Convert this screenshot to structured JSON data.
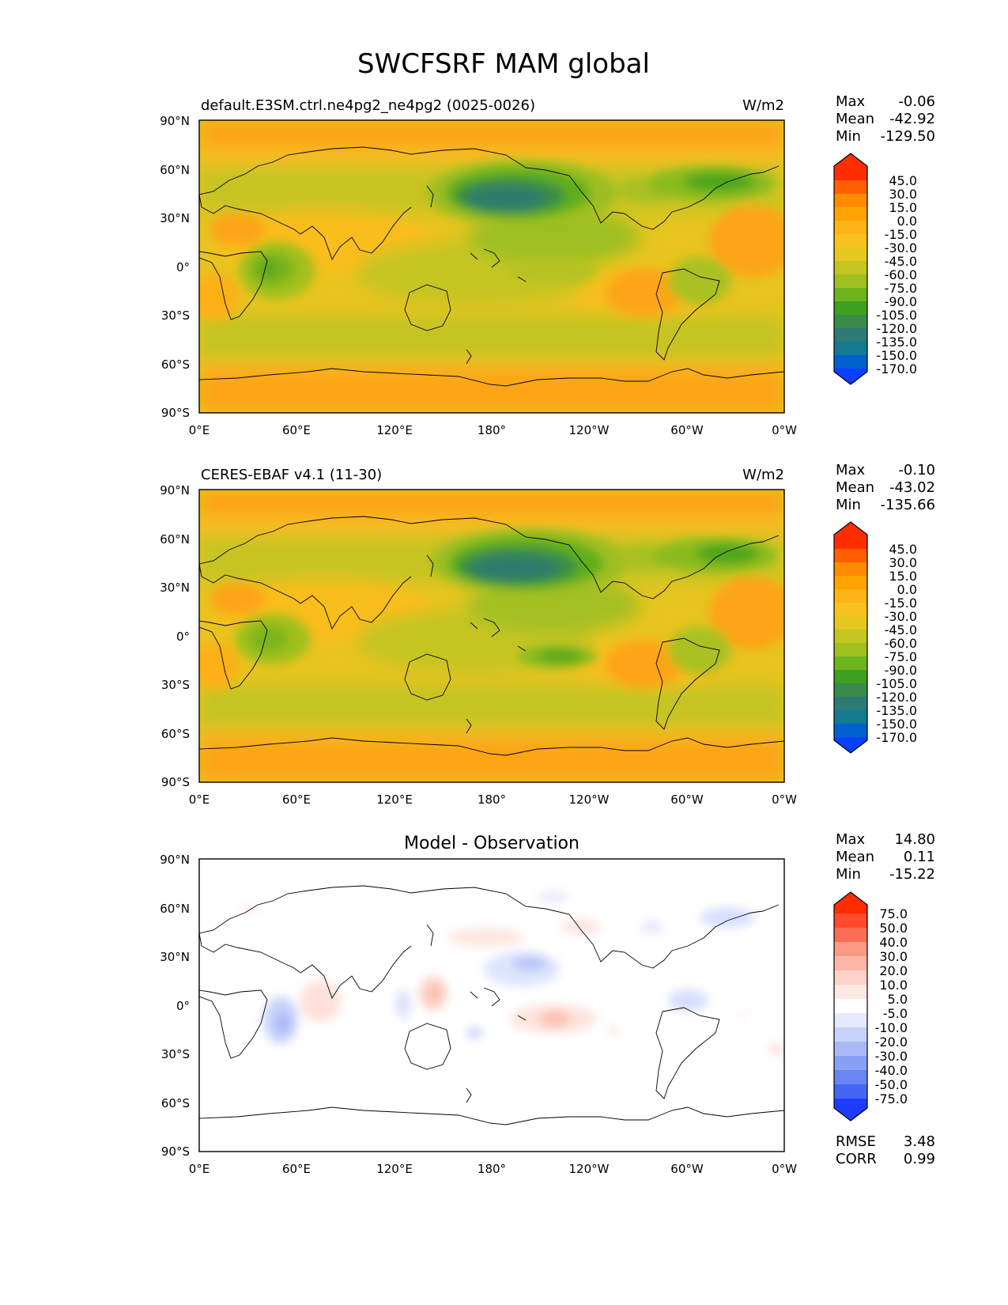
{
  "figure": {
    "title": "SWCFSRF MAM global",
    "x_ticks": [
      "0°E",
      "60°E",
      "120°E",
      "180°",
      "120°W",
      "60°W",
      "0°W"
    ],
    "y_ticks": [
      "90°N",
      "60°N",
      "30°N",
      "0°",
      "30°S",
      "60°S",
      "90°S"
    ]
  },
  "panels": [
    {
      "id": "model",
      "left_title": "default.E3SM.ctrl.ne4pg2_ne4pg2 (0025-0026)",
      "center_title": "",
      "units": "W/m2",
      "stats": [
        {
          "label": "Max",
          "value": "-0.06"
        },
        {
          "label": "Mean",
          "value": "-42.92"
        },
        {
          "label": "Min",
          "value": "-129.50"
        }
      ],
      "extra_stats": [],
      "colorbar": {
        "labels": [
          "45.0",
          "30.0",
          "15.0",
          "0.0",
          "-15.0",
          "-30.0",
          "-45.0",
          "-60.0",
          "-75.0",
          "-90.0",
          "-105.0",
          "-120.0",
          "-135.0",
          "-150.0",
          "-170.0"
        ],
        "colors": [
          "#ff2d00",
          "#ff5f00",
          "#ff8b00",
          "#ffa400",
          "#fdb416",
          "#f7c21f",
          "#e6c81e",
          "#c4c520",
          "#9fc01e",
          "#6eb41c",
          "#3ea020",
          "#3a8a4c",
          "#2d7a76",
          "#137a90",
          "#0060d0",
          "#0a40ff"
        ]
      }
    },
    {
      "id": "obs",
      "left_title": "CERES-EBAF v4.1 (11-30)",
      "center_title": "",
      "units": "W/m2",
      "stats": [
        {
          "label": "Max",
          "value": "-0.10"
        },
        {
          "label": "Mean",
          "value": "-43.02"
        },
        {
          "label": "Min",
          "value": "-135.66"
        }
      ],
      "extra_stats": [],
      "colorbar": {
        "labels": [
          "45.0",
          "30.0",
          "15.0",
          "0.0",
          "-15.0",
          "-30.0",
          "-45.0",
          "-60.0",
          "-75.0",
          "-90.0",
          "-105.0",
          "-120.0",
          "-135.0",
          "-150.0",
          "-170.0"
        ],
        "colors": [
          "#ff2d00",
          "#ff5f00",
          "#ff8b00",
          "#ffa400",
          "#fdb416",
          "#f7c21f",
          "#e6c81e",
          "#c4c520",
          "#9fc01e",
          "#6eb41c",
          "#3ea020",
          "#3a8a4c",
          "#2d7a76",
          "#137a90",
          "#0060d0",
          "#0a40ff"
        ]
      }
    },
    {
      "id": "diff",
      "left_title": "",
      "center_title": "Model - Observation",
      "units": "",
      "stats": [
        {
          "label": "Max",
          "value": "14.80"
        },
        {
          "label": "Mean",
          "value": "0.11"
        },
        {
          "label": "Min",
          "value": "-15.22"
        }
      ],
      "extra_stats": [
        {
          "label": "RMSE",
          "value": "3.48"
        },
        {
          "label": "CORR",
          "value": "0.99"
        }
      ],
      "colorbar": {
        "labels": [
          "75.0",
          "50.0",
          "40.0",
          "30.0",
          "20.0",
          "10.0",
          "5.0",
          "-5.0",
          "-10.0",
          "-20.0",
          "-30.0",
          "-40.0",
          "-50.0",
          "-75.0"
        ],
        "colors": [
          "#ff2d00",
          "#ff4a2e",
          "#fb6d55",
          "#fb9a84",
          "#fcb6a8",
          "#fdd2c8",
          "#fee8e2",
          "#ffffff",
          "#e4e9fd",
          "#c8d3fb",
          "#a9b9f8",
          "#8aa0f5",
          "#6a84f2",
          "#4466f5",
          "#1e3cff"
        ]
      }
    }
  ],
  "chart_data": [
    {
      "type": "heatmap",
      "title": "default.E3SM.ctrl.ne4pg2_ne4pg2 (0025-0026)",
      "units": "W/m2",
      "xlim": [
        0,
        360
      ],
      "ylim": [
        -90,
        90
      ],
      "levels": [
        -170,
        -150,
        -135,
        -120,
        -105,
        -90,
        -75,
        -60,
        -45,
        -30,
        -15,
        0,
        15,
        30,
        45
      ],
      "features": [
        {
          "lon": 160,
          "lat": 44,
          "rx": 34,
          "ry": 14,
          "value": -129.5
        },
        {
          "lon": 165,
          "lat": 45,
          "rx": 55,
          "ry": 22,
          "value": -90
        },
        {
          "lon": 280,
          "lat": 48,
          "rx": 50,
          "ry": 18,
          "value": -100
        },
        {
          "lon": 45,
          "lat": -2,
          "rx": 25,
          "ry": 14,
          "value": -85
        },
        {
          "lon": 330,
          "lat": 15,
          "rx": 28,
          "ry": 20,
          "value": -15
        },
        {
          "lon": 265,
          "lat": -10,
          "rx": 25,
          "ry": 15,
          "value": -20
        },
        {
          "lon": 20,
          "lat": 25,
          "rx": 18,
          "ry": 8,
          "value": -18
        }
      ],
      "stats": {
        "max": -0.06,
        "mean": -42.92,
        "min": -129.5
      }
    },
    {
      "type": "heatmap",
      "title": "CERES-EBAF v4.1 (11-30)",
      "units": "W/m2",
      "xlim": [
        0,
        360
      ],
      "ylim": [
        -90,
        90
      ],
      "levels": [
        -170,
        -150,
        -135,
        -120,
        -105,
        -90,
        -75,
        -60,
        -45,
        -30,
        -15,
        0,
        15,
        30,
        45
      ],
      "features": [
        {
          "lon": 170,
          "lat": 42,
          "rx": 36,
          "ry": 14,
          "value": -135.66
        },
        {
          "lon": 170,
          "lat": 44,
          "rx": 60,
          "ry": 22,
          "value": -95
        },
        {
          "lon": 295,
          "lat": 48,
          "rx": 42,
          "ry": 16,
          "value": -100
        },
        {
          "lon": 40,
          "lat": -2,
          "rx": 22,
          "ry": 12,
          "value": -80
        },
        {
          "lon": 220,
          "lat": -8,
          "rx": 22,
          "ry": 8,
          "value": -85
        },
        {
          "lon": 330,
          "lat": 15,
          "rx": 28,
          "ry": 20,
          "value": -15
        },
        {
          "lon": 265,
          "lat": -10,
          "rx": 25,
          "ry": 15,
          "value": -20
        }
      ],
      "stats": {
        "max": -0.1,
        "mean": -43.02,
        "min": -135.66
      }
    },
    {
      "type": "heatmap",
      "title": "Model - Observation",
      "xlim": [
        0,
        360
      ],
      "ylim": [
        -90,
        90
      ],
      "levels": [
        -75,
        -50,
        -40,
        -30,
        -20,
        -10,
        -5,
        5,
        10,
        20,
        30,
        40,
        50,
        75
      ],
      "features": [
        {
          "lon": 50,
          "lat": -10,
          "rx": 8,
          "ry": 10,
          "value": -15.22
        },
        {
          "lon": 195,
          "lat": 22,
          "rx": 14,
          "ry": 8,
          "value": -12
        },
        {
          "lon": 290,
          "lat": 5,
          "rx": 10,
          "ry": 6,
          "value": -8
        },
        {
          "lon": 335,
          "lat": 58,
          "rx": 15,
          "ry": 5,
          "value": -8
        },
        {
          "lon": 215,
          "lat": -5,
          "rx": 20,
          "ry": 8,
          "value": 14.8
        },
        {
          "lon": 145,
          "lat": 10,
          "rx": 8,
          "ry": 8,
          "value": 12
        },
        {
          "lon": 75,
          "lat": 5,
          "rx": 10,
          "ry": 10,
          "value": 8
        },
        {
          "lon": 175,
          "lat": 40,
          "rx": 22,
          "ry": 5,
          "value": 7
        }
      ],
      "stats": {
        "max": 14.8,
        "mean": 0.11,
        "min": -15.22,
        "rmse": 3.48,
        "corr": 0.99
      }
    }
  ]
}
